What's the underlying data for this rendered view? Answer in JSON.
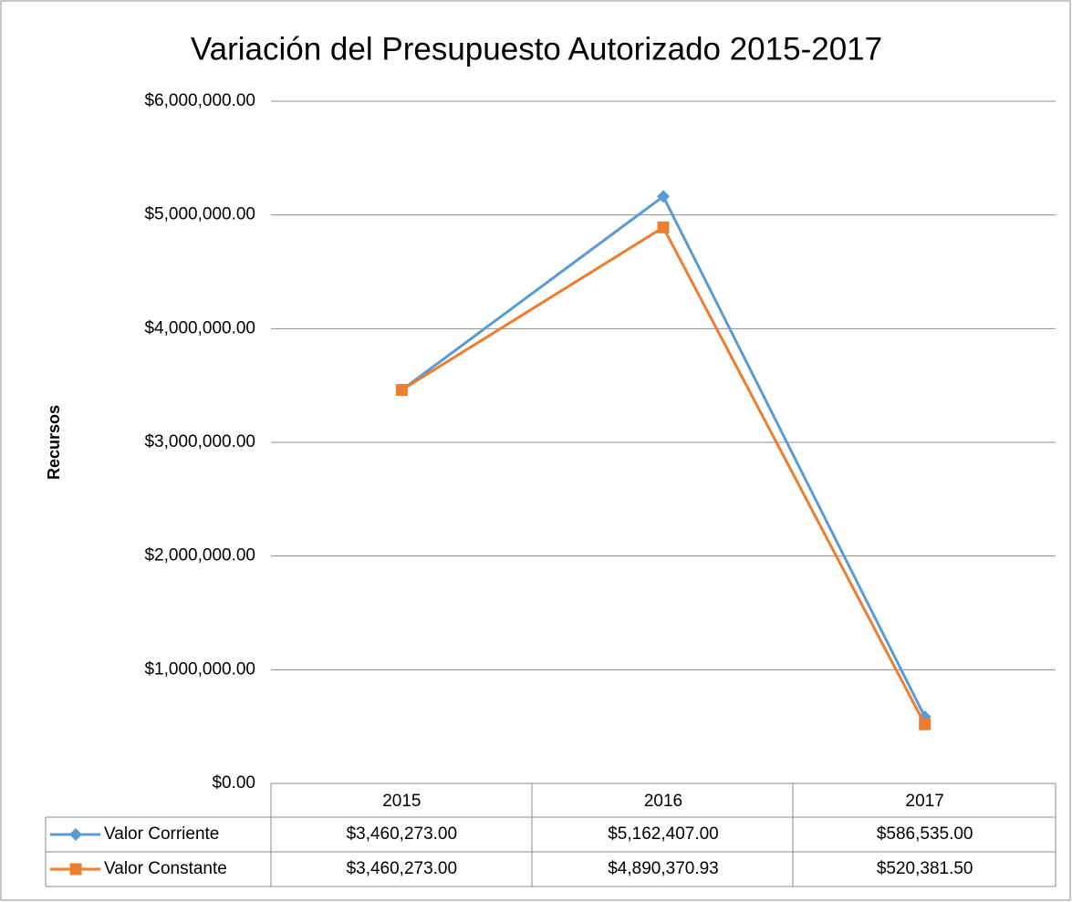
{
  "chart_data": {
    "type": "line",
    "title": "Variación del Presupuesto Autorizado 2015-2017",
    "ylabel": "Recursos",
    "categories": [
      "2015",
      "2016",
      "2017"
    ],
    "series": [
      {
        "name": "Valor Corriente",
        "color": "#5b9bd5",
        "marker": "diamond",
        "values": [
          3460273,
          5162407,
          586535
        ],
        "value_labels": [
          "$3,460,273.00",
          "$5,162,407.00",
          "$586,535.00"
        ]
      },
      {
        "name": "Valor Constante",
        "color": "#ed7d31",
        "marker": "square",
        "values": [
          3460273,
          4890370.93,
          520381.5
        ],
        "value_labels": [
          "$3,460,273.00",
          "$4,890,370.93",
          "$520,381.50"
        ]
      }
    ],
    "ylim": [
      0,
      6000000
    ],
    "yticks": [
      {
        "value": 0,
        "label": "$0.00"
      },
      {
        "value": 1000000,
        "label": "$1,000,000.00"
      },
      {
        "value": 2000000,
        "label": "$2,000,000.00"
      },
      {
        "value": 3000000,
        "label": "$3,000,000.00"
      },
      {
        "value": 4000000,
        "label": "$4,000,000.00"
      },
      {
        "value": 5000000,
        "label": "$5,000,000.00"
      },
      {
        "value": 6000000,
        "label": "$6,000,000.00"
      }
    ],
    "grid": true
  }
}
